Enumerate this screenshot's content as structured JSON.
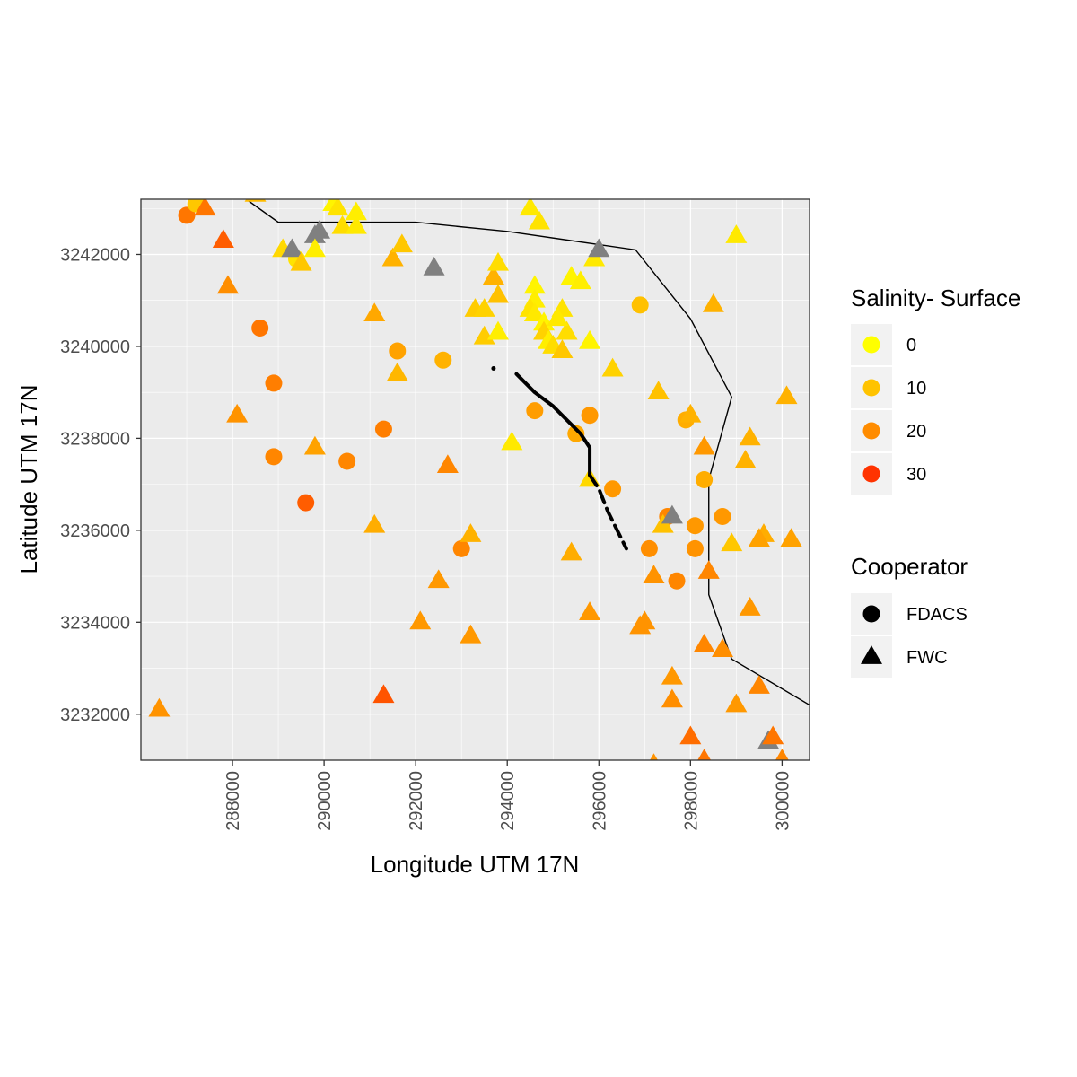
{
  "chart_data": {
    "type": "scatter",
    "xlabel": "Longitude UTM 17N",
    "ylabel": "Latitude UTM 17N",
    "xlim": [
      286000,
      300600
    ],
    "ylim": [
      3231000,
      3243200
    ],
    "x_ticks": [
      288000,
      290000,
      292000,
      294000,
      296000,
      298000,
      300000
    ],
    "y_ticks": [
      3232000,
      3234000,
      3236000,
      3238000,
      3240000,
      3242000
    ],
    "x_tick_labels": [
      "288000",
      "290000",
      "292000",
      "294000",
      "296000",
      "298000",
      "300000"
    ],
    "y_tick_labels": [
      "3232000",
      "3234000",
      "3236000",
      "3238000",
      "3240000",
      "3242000"
    ],
    "grid": true,
    "legend_position": "right",
    "color_legend": {
      "title": "Salinity- Surface",
      "labels": [
        "0",
        "10",
        "20",
        "30"
      ],
      "colors": [
        "#ffff00",
        "#ffc300",
        "#ff8c00",
        "#ff3300"
      ],
      "domain": [
        0,
        32
      ]
    },
    "shape_legend": {
      "title": "Cooperator",
      "labels": [
        "FDACS",
        "FWC"
      ],
      "shapes": [
        "circle",
        "triangle"
      ]
    },
    "na_color": "#808080",
    "shoreline": [
      [
        288300,
        3243200
      ],
      [
        289000,
        3242700
      ],
      [
        292000,
        3242700
      ],
      [
        294000,
        3242500
      ],
      [
        296800,
        3242100
      ],
      [
        298000,
        3240600
      ],
      [
        298900,
        3238900
      ],
      [
        298400,
        3237100
      ],
      [
        298400,
        3234600
      ],
      [
        298900,
        3233200
      ],
      [
        300600,
        3232200
      ]
    ],
    "fdacs_track": [
      [
        293700,
        3239520
      ],
      [
        294200,
        3239400
      ],
      [
        294600,
        3239000
      ],
      [
        295000,
        3238700
      ],
      [
        295300,
        3238400
      ],
      [
        295600,
        3238100
      ],
      [
        295800,
        3237800
      ],
      [
        295800,
        3237200
      ],
      [
        296000,
        3236900
      ],
      [
        296200,
        3236400
      ],
      [
        296400,
        3236000
      ],
      [
        296600,
        3235600
      ]
    ],
    "series": [
      {
        "name": "FDACS",
        "points": [
          {
            "x": 287000,
            "y": 3242850,
            "s": 24
          },
          {
            "x": 287200,
            "y": 3243100,
            "s": 10
          },
          {
            "x": 289400,
            "y": 3241900,
            "s": 5
          },
          {
            "x": 288600,
            "y": 3240400,
            "s": 24
          },
          {
            "x": 288900,
            "y": 3239200,
            "s": 23
          },
          {
            "x": 288900,
            "y": 3237600,
            "s": 22
          },
          {
            "x": 289600,
            "y": 3236600,
            "s": 27
          },
          {
            "x": 290500,
            "y": 3237500,
            "s": 22
          },
          {
            "x": 291300,
            "y": 3238200,
            "s": 23
          },
          {
            "x": 291600,
            "y": 3239900,
            "s": 17
          },
          {
            "x": 292600,
            "y": 3239700,
            "s": 14
          },
          {
            "x": 293000,
            "y": 3235600,
            "s": 22
          },
          {
            "x": 294600,
            "y": 3238600,
            "s": 18
          },
          {
            "x": 295500,
            "y": 3238100,
            "s": 16
          },
          {
            "x": 295800,
            "y": 3238500,
            "s": 19
          },
          {
            "x": 296300,
            "y": 3236900,
            "s": 19
          },
          {
            "x": 296900,
            "y": 3240900,
            "s": 11
          },
          {
            "x": 297100,
            "y": 3235600,
            "s": 21
          },
          {
            "x": 297500,
            "y": 3236300,
            "s": 22
          },
          {
            "x": 297700,
            "y": 3234900,
            "s": 22
          },
          {
            "x": 297900,
            "y": 3238400,
            "s": 15
          },
          {
            "x": 298100,
            "y": 3236100,
            "s": 19
          },
          {
            "x": 298100,
            "y": 3235600,
            "s": 20
          },
          {
            "x": 298300,
            "y": 3237100,
            "s": 15
          },
          {
            "x": 298700,
            "y": 3236300,
            "s": 19
          }
        ]
      },
      {
        "name": "FWC",
        "points": [
          {
            "x": 287400,
            "y": 3243000,
            "s": 24
          },
          {
            "x": 288500,
            "y": 3243300,
            "s": 12
          },
          {
            "x": 287800,
            "y": 3242300,
            "s": 27
          },
          {
            "x": 287900,
            "y": 3241300,
            "s": 21
          },
          {
            "x": 288100,
            "y": 3238500,
            "s": 20
          },
          {
            "x": 286400,
            "y": 3232100,
            "s": 20
          },
          {
            "x": 289100,
            "y": 3242100,
            "s": 7
          },
          {
            "x": 289300,
            "y": 3242100,
            "s": null
          },
          {
            "x": 289500,
            "y": 3241800,
            "s": 10
          },
          {
            "x": 289800,
            "y": 3242400,
            "s": null
          },
          {
            "x": 289900,
            "y": 3242500,
            "s": null
          },
          {
            "x": 289800,
            "y": 3242100,
            "s": 3
          },
          {
            "x": 290200,
            "y": 3243100,
            "s": 2
          },
          {
            "x": 290300,
            "y": 3243000,
            "s": 5
          },
          {
            "x": 290400,
            "y": 3242600,
            "s": 6
          },
          {
            "x": 290700,
            "y": 3242600,
            "s": 4
          },
          {
            "x": 290700,
            "y": 3242900,
            "s": 3
          },
          {
            "x": 289800,
            "y": 3237800,
            "s": 17
          },
          {
            "x": 291100,
            "y": 3240700,
            "s": 16
          },
          {
            "x": 291500,
            "y": 3241900,
            "s": 14
          },
          {
            "x": 291700,
            "y": 3242200,
            "s": 10
          },
          {
            "x": 291600,
            "y": 3239400,
            "s": 13
          },
          {
            "x": 291100,
            "y": 3236100,
            "s": 15
          },
          {
            "x": 292400,
            "y": 3241700,
            "s": null
          },
          {
            "x": 292700,
            "y": 3237400,
            "s": 22
          },
          {
            "x": 293200,
            "y": 3235900,
            "s": 14
          },
          {
            "x": 292500,
            "y": 3234900,
            "s": 19
          },
          {
            "x": 292100,
            "y": 3234000,
            "s": 19
          },
          {
            "x": 293200,
            "y": 3233700,
            "s": 19
          },
          {
            "x": 291300,
            "y": 3232400,
            "s": 28
          },
          {
            "x": 293300,
            "y": 3240800,
            "s": 9
          },
          {
            "x": 293500,
            "y": 3240800,
            "s": 8
          },
          {
            "x": 293500,
            "y": 3240200,
            "s": 9
          },
          {
            "x": 293700,
            "y": 3241500,
            "s": 14
          },
          {
            "x": 293800,
            "y": 3241800,
            "s": 6
          },
          {
            "x": 293800,
            "y": 3241100,
            "s": 11
          },
          {
            "x": 293800,
            "y": 3240300,
            "s": 3
          },
          {
            "x": 294100,
            "y": 3237900,
            "s": 4
          },
          {
            "x": 294500,
            "y": 3243000,
            "s": 4
          },
          {
            "x": 294700,
            "y": 3242700,
            "s": 5
          },
          {
            "x": 294600,
            "y": 3241300,
            "s": 2
          },
          {
            "x": 294600,
            "y": 3241000,
            "s": 3
          },
          {
            "x": 294500,
            "y": 3240800,
            "s": 5
          },
          {
            "x": 294600,
            "y": 3240700,
            "s": 4
          },
          {
            "x": 294800,
            "y": 3240500,
            "s": 2
          },
          {
            "x": 294800,
            "y": 3240300,
            "s": 8
          },
          {
            "x": 294900,
            "y": 3240100,
            "s": 3
          },
          {
            "x": 295000,
            "y": 3240000,
            "s": 6
          },
          {
            "x": 295200,
            "y": 3239900,
            "s": 10
          },
          {
            "x": 295300,
            "y": 3240300,
            "s": 6
          },
          {
            "x": 295400,
            "y": 3241500,
            "s": 2
          },
          {
            "x": 295600,
            "y": 3241400,
            "s": 3
          },
          {
            "x": 295900,
            "y": 3241900,
            "s": 4
          },
          {
            "x": 295800,
            "y": 3240100,
            "s": 2
          },
          {
            "x": 295200,
            "y": 3240800,
            "s": 5
          },
          {
            "x": 295100,
            "y": 3240600,
            "s": 4
          },
          {
            "x": 295800,
            "y": 3237100,
            "s": 7
          },
          {
            "x": 296000,
            "y": 3242100,
            "s": null
          },
          {
            "x": 296300,
            "y": 3239500,
            "s": 8
          },
          {
            "x": 295400,
            "y": 3235500,
            "s": 15
          },
          {
            "x": 295800,
            "y": 3234200,
            "s": 19
          },
          {
            "x": 297000,
            "y": 3234000,
            "s": 20
          },
          {
            "x": 296900,
            "y": 3233900,
            "s": 20
          },
          {
            "x": 297200,
            "y": 3235000,
            "s": 20
          },
          {
            "x": 297300,
            "y": 3239000,
            "s": 11
          },
          {
            "x": 297400,
            "y": 3236100,
            "s": 11
          },
          {
            "x": 297600,
            "y": 3236300,
            "s": null
          },
          {
            "x": 297600,
            "y": 3232800,
            "s": 19
          },
          {
            "x": 297600,
            "y": 3232300,
            "s": 21
          },
          {
            "x": 297200,
            "y": 3230900,
            "s": 20
          },
          {
            "x": 298000,
            "y": 3238500,
            "s": 14
          },
          {
            "x": 298300,
            "y": 3237800,
            "s": 19
          },
          {
            "x": 298400,
            "y": 3235100,
            "s": 22
          },
          {
            "x": 298300,
            "y": 3233500,
            "s": 22
          },
          {
            "x": 298700,
            "y": 3233400,
            "s": 21
          },
          {
            "x": 298000,
            "y": 3231500,
            "s": 25
          },
          {
            "x": 298300,
            "y": 3231000,
            "s": 24
          },
          {
            "x": 298500,
            "y": 3240900,
            "s": 14
          },
          {
            "x": 299000,
            "y": 3242400,
            "s": 4
          },
          {
            "x": 298900,
            "y": 3235700,
            "s": 10
          },
          {
            "x": 299000,
            "y": 3232200,
            "s": 19
          },
          {
            "x": 299300,
            "y": 3238000,
            "s": 14
          },
          {
            "x": 299200,
            "y": 3237500,
            "s": 14
          },
          {
            "x": 299300,
            "y": 3234300,
            "s": 19
          },
          {
            "x": 299500,
            "y": 3232600,
            "s": 22
          },
          {
            "x": 299600,
            "y": 3235900,
            "s": 15
          },
          {
            "x": 299500,
            "y": 3235800,
            "s": 17
          },
          {
            "x": 299700,
            "y": 3231400,
            "s": null
          },
          {
            "x": 299800,
            "y": 3231500,
            "s": 24
          },
          {
            "x": 300000,
            "y": 3231000,
            "s": 22
          },
          {
            "x": 300100,
            "y": 3238900,
            "s": 14
          },
          {
            "x": 300200,
            "y": 3235800,
            "s": 17
          }
        ]
      }
    ]
  }
}
